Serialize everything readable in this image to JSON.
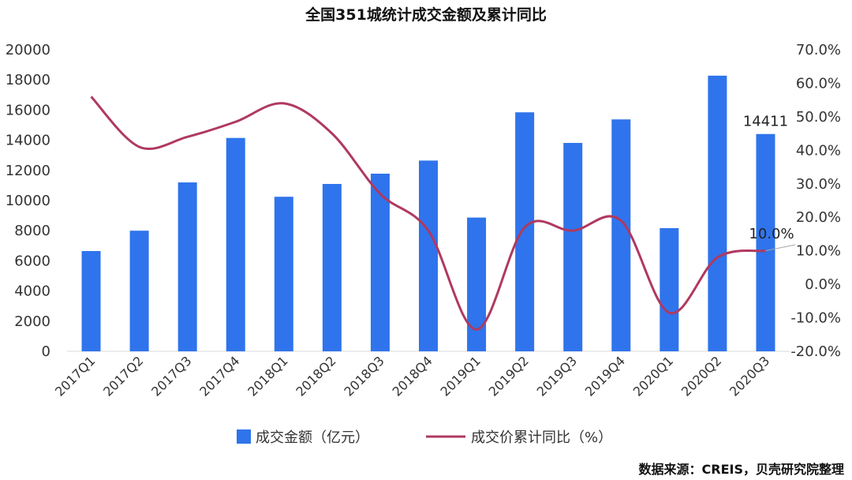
{
  "chart_data": {
    "type": "bar+line",
    "title": "全国351城统计成交金额及累计同比",
    "categories": [
      "2017Q1",
      "2017Q2",
      "2017Q3",
      "2017Q4",
      "2018Q1",
      "2018Q2",
      "2018Q3",
      "2018Q4",
      "2019Q1",
      "2019Q2",
      "2019Q3",
      "2019Q4",
      "2020Q1",
      "2020Q2",
      "2020Q3"
    ],
    "series": [
      {
        "name": "成交金额（亿元）",
        "type": "bar",
        "axis": "left",
        "color": "#2f74ec",
        "values": [
          6650,
          8000,
          11200,
          14150,
          10250,
          11100,
          11780,
          12650,
          8870,
          15850,
          13820,
          15380,
          8170,
          18280,
          14411
        ]
      },
      {
        "name": "成交价累计同比（%）",
        "type": "line",
        "axis": "right",
        "color": "#b0395f",
        "values": [
          56.0,
          41.0,
          44.0,
          48.5,
          54.0,
          45.0,
          27.0,
          16.0,
          -13.5,
          17.0,
          16.0,
          19.0,
          -8.5,
          8.0,
          10.0
        ]
      }
    ],
    "y_left": {
      "min": 0,
      "max": 20000,
      "ticks": [
        "0",
        "2000",
        "4000",
        "6000",
        "8000",
        "10000",
        "12000",
        "14000",
        "16000",
        "18000",
        "20000"
      ]
    },
    "y_right": {
      "min": -20,
      "max": 70,
      "ticks": [
        "-20.0%",
        "-10.0%",
        "0.0%",
        "10.0%",
        "20.0%",
        "30.0%",
        "40.0%",
        "50.0%",
        "60.0%",
        "70.0%"
      ]
    },
    "annotations": {
      "bar_label": {
        "index": 14,
        "text": "14411"
      },
      "line_label": {
        "index": 14,
        "text": "10.0%"
      }
    },
    "legend_position": "bottom",
    "grid": false
  },
  "source": "数据来源：CREIS，贝壳研究院整理"
}
